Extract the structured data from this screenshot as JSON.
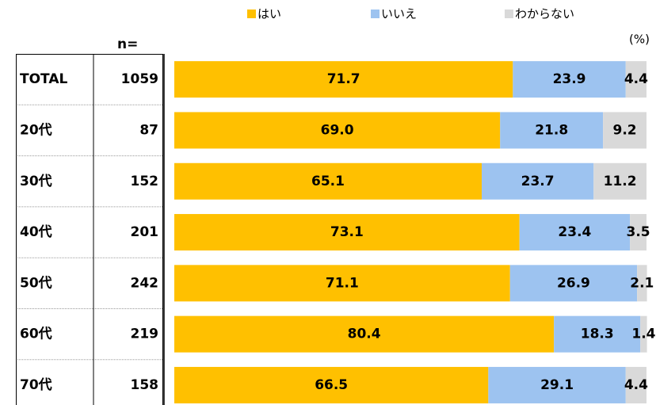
{
  "chart_data": {
    "type": "stacked_bar_horizontal",
    "categories": [
      "TOTAL",
      "20代",
      "30代",
      "40代",
      "50代",
      "60代",
      "70代"
    ],
    "n_label": "n=",
    "n": [
      1059,
      87,
      152,
      201,
      242,
      219,
      158
    ],
    "unit_label": "(%)",
    "xlim": [
      0,
      100
    ],
    "series": [
      {
        "name": "はい",
        "color": "#FFC000",
        "values": [
          71.7,
          69.0,
          65.1,
          73.1,
          71.1,
          80.4,
          66.5
        ],
        "value_labels": [
          "71.7",
          "69.0",
          "65.1",
          "73.1",
          "71.1",
          "80.4",
          "66.5"
        ]
      },
      {
        "name": "いいえ",
        "color": "#9DC3F0",
        "values": [
          23.9,
          21.8,
          23.7,
          23.4,
          26.9,
          18.3,
          29.1
        ],
        "value_labels": [
          "23.9",
          "21.8",
          "23.7",
          "23.4",
          "26.9",
          "18.3",
          "29.1"
        ]
      },
      {
        "name": "わからない",
        "color": "#D9D9D9",
        "values": [
          4.4,
          9.2,
          11.2,
          3.5,
          2.1,
          1.4,
          4.4
        ],
        "value_labels": [
          "4.4",
          "9.2",
          "11.2",
          "3.5",
          "2.1",
          "1.4",
          "4.4"
        ]
      }
    ]
  }
}
